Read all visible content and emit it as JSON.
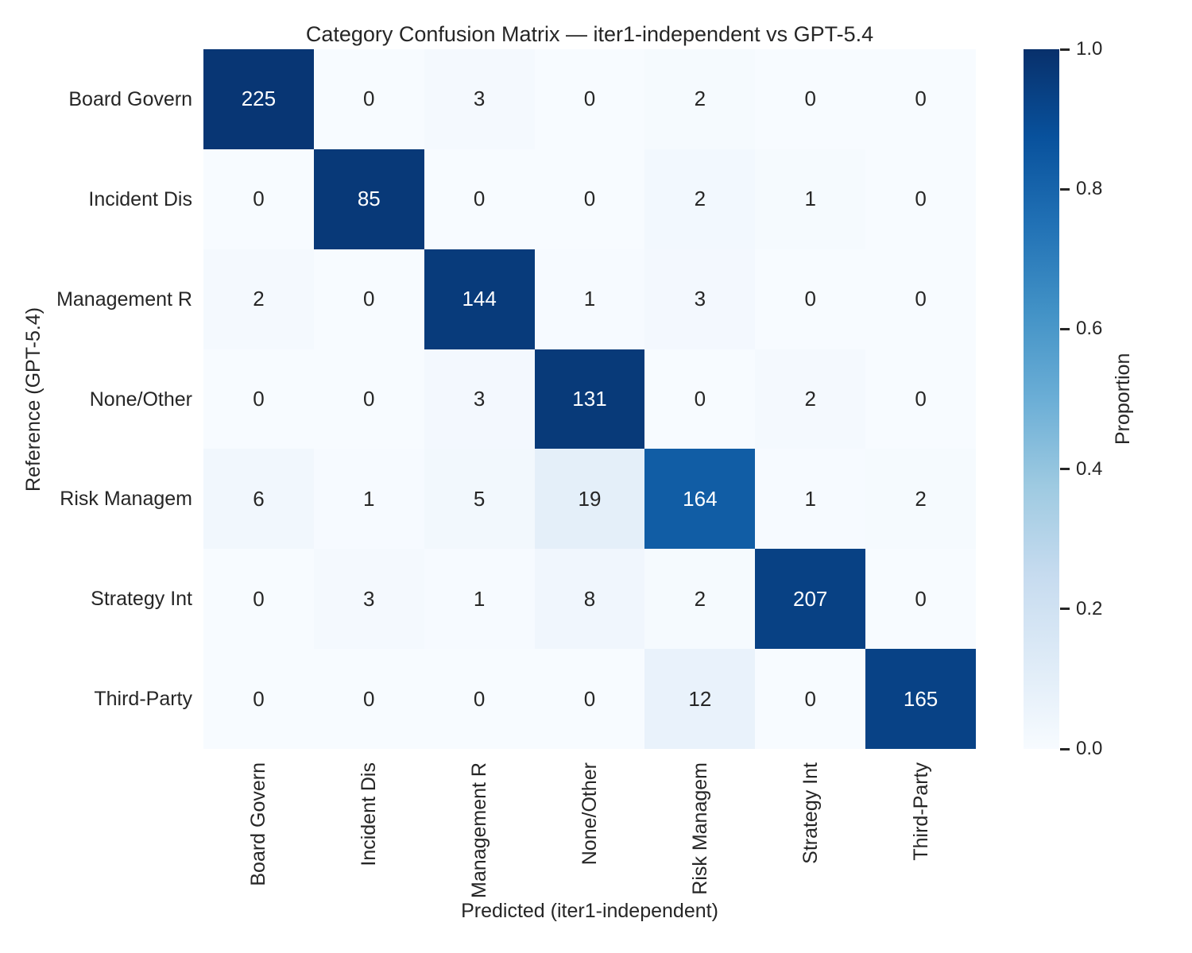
{
  "title": "Category Confusion Matrix — iter1-independent vs GPT-5.4",
  "chart_data": {
    "type": "heatmap",
    "categories": [
      "Board Govern",
      "Incident Dis",
      "Management R",
      "None/Other",
      "Risk Managem",
      "Strategy Int",
      "Third-Party"
    ],
    "matrix": [
      [
        225,
        0,
        3,
        0,
        2,
        0,
        0
      ],
      [
        0,
        85,
        0,
        0,
        2,
        1,
        0
      ],
      [
        2,
        0,
        144,
        1,
        3,
        0,
        0
      ],
      [
        0,
        0,
        3,
        131,
        0,
        2,
        0
      ],
      [
        6,
        1,
        5,
        19,
        164,
        1,
        2
      ],
      [
        0,
        3,
        1,
        8,
        2,
        207,
        0
      ],
      [
        0,
        0,
        0,
        0,
        12,
        0,
        165
      ]
    ],
    "xlabel": "Predicted (iter1-independent)",
    "ylabel": "Reference (GPT-5.4)",
    "normalization": "row",
    "colormap": "Blues",
    "grid": false,
    "colorbar": {
      "label": "Proportion",
      "ticks": [
        "1.0",
        "0.8",
        "0.6",
        "0.4",
        "0.2",
        "0.0"
      ],
      "tick_values": [
        1.0,
        0.8,
        0.6,
        0.4,
        0.2,
        0.0
      ],
      "range": [
        0.0,
        1.0
      ]
    }
  },
  "colors": {
    "cmap_stops": [
      "#f7fbff",
      "#deebf7",
      "#c6dbef",
      "#9ecae1",
      "#6baed6",
      "#4292c6",
      "#2171b5",
      "#08519c",
      "#08306b"
    ],
    "text_dark": "#262626",
    "text_light": "#ffffff",
    "background": "#ffffff"
  }
}
